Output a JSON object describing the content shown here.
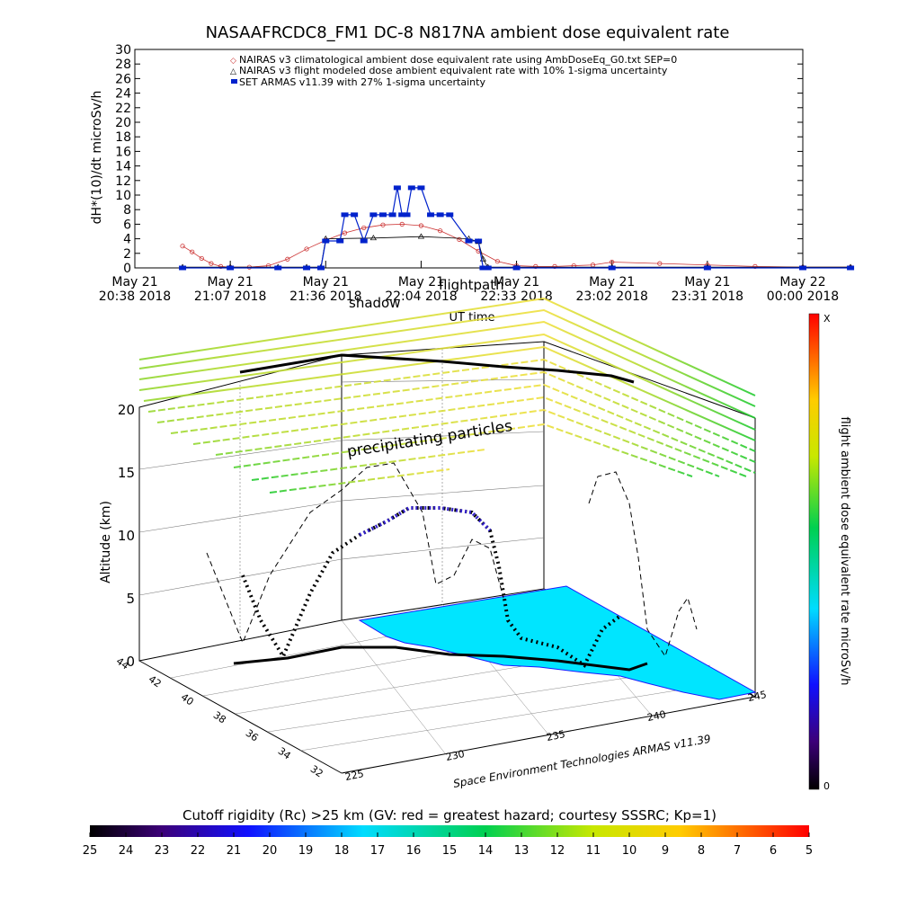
{
  "title": "NASAAFRCDC8_FM1 DC-8    N817NA ambient dose equivalent rate",
  "credit": "Space Environment Technologies ARMAS v11.39",
  "colors": {
    "climatological": "#cc3333",
    "modeled": "#000000",
    "armas": "#0022cc",
    "land": "#00e5ff"
  },
  "chart_data": [
    {
      "type": "scatter",
      "ylabel": "dH*(10)/dt microSv/h",
      "xlabel": "UT time",
      "ylim": [
        0,
        30
      ],
      "yticks": [
        "0",
        "2",
        "4",
        "6",
        "8",
        "10",
        "12",
        "14",
        "16",
        "18",
        "20",
        "22",
        "24",
        "26",
        "28",
        "30"
      ],
      "xticks": [
        {
          "l1": "May 21",
          "l2": "20:38 2018"
        },
        {
          "l1": "May 21",
          "l2": "21:07 2018"
        },
        {
          "l1": "May 21",
          "l2": "21:36 2018"
        },
        {
          "l1": "May 21",
          "l2": "22:04 2018"
        },
        {
          "l1": "May 21",
          "l2": "22:33 2018"
        },
        {
          "l1": "May 21",
          "l2": "23:02 2018"
        },
        {
          "l1": "May 21",
          "l2": "23:31 2018"
        },
        {
          "l1": "May 22",
          "l2": "00:00 2018"
        }
      ],
      "legend": [
        "NAIRAS v3 climatological ambient dose equivalent rate using AmbDoseEq_G0.txt SEP=0",
        "NAIRAS v3 flight modeled dose ambient equivalent rate with 10% 1-sigma uncertainty",
        "SET ARMAS v11.39 with 27% 1-sigma uncertainty"
      ],
      "overlay_labels": [
        "shadow",
        "flightpath"
      ],
      "series": [
        {
          "name": "NAIRAS v3 climatological ambient dose equivalent rate using AmbDoseEq_G0.txt SEP=0",
          "x": [
            0.5,
            0.6,
            0.7,
            0.8,
            0.9,
            1.0,
            1.2,
            1.4,
            1.6,
            1.8,
            2.0,
            2.2,
            2.4,
            2.6,
            2.8,
            3.0,
            3.2,
            3.4,
            3.6,
            3.8,
            4.0,
            4.2,
            4.4,
            4.6,
            4.8,
            5.0,
            5.5,
            6.0,
            6.5,
            7.0,
            7.5
          ],
          "y": [
            3.0,
            2.2,
            1.3,
            0.6,
            0.2,
            0.1,
            0.1,
            0.3,
            1.2,
            2.6,
            3.8,
            4.8,
            5.5,
            5.9,
            6.0,
            5.8,
            5.1,
            3.9,
            2.3,
            0.9,
            0.3,
            0.2,
            0.2,
            0.3,
            0.4,
            0.8,
            0.6,
            0.4,
            0.2,
            0.1,
            0.1
          ]
        },
        {
          "name": "NAIRAS v3 flight modeled dose ambient equivalent rate with 10% 1-sigma uncertainty",
          "x": [
            0.5,
            1.0,
            1.5,
            1.8,
            1.95,
            2.0,
            2.5,
            3.0,
            3.5,
            3.6,
            3.65,
            3.7,
            4.0,
            5.0,
            6.0,
            7.0,
            7.5
          ],
          "y": [
            0.1,
            0.1,
            0.1,
            0.1,
            0.1,
            4.0,
            4.1,
            4.3,
            4.0,
            3.6,
            1.2,
            0.1,
            0.1,
            0.1,
            0.1,
            0.1,
            0.1
          ]
        },
        {
          "name": "SET ARMAS v11.39 with 27% 1-sigma uncertainty",
          "x": [
            0.5,
            1.0,
            1.5,
            1.8,
            1.95,
            2.0,
            2.15,
            2.2,
            2.3,
            2.4,
            2.5,
            2.6,
            2.7,
            2.75,
            2.8,
            2.85,
            2.9,
            3.0,
            3.1,
            3.2,
            3.3,
            3.5,
            3.6,
            3.65,
            3.7,
            4.0,
            5.0,
            6.0,
            7.0,
            7.5
          ],
          "y": [
            0,
            0,
            0,
            0,
            0,
            3.7,
            3.7,
            7.3,
            7.3,
            3.7,
            7.3,
            7.3,
            7.3,
            11.0,
            7.3,
            7.3,
            11.0,
            11.0,
            7.3,
            7.3,
            7.3,
            3.7,
            3.7,
            0,
            0,
            0,
            0,
            0,
            0,
            0
          ]
        }
      ]
    },
    {
      "type": "line",
      "ylabel": "Altitude (km)",
      "zticks": [
        "0",
        "5",
        "10",
        "15",
        "20"
      ],
      "lat_ticks": [
        "44",
        "42",
        "40",
        "38",
        "36",
        "34",
        "32"
      ],
      "lon_ticks": [
        "225",
        "230",
        "235",
        "240",
        "245"
      ],
      "annotation": "precipitating particles",
      "colorbar_label": "flight ambient dose equivalent rate microSv/h",
      "colorbar_ticks": [
        "X",
        "0"
      ]
    },
    {
      "type": "heatmap",
      "title": "Cutoff rigidity (Rc) >25 km (GV: red = greatest hazard; courtesy SSSRC; Kp=1)",
      "ticks": [
        "25",
        "24",
        "23",
        "22",
        "21",
        "20",
        "19",
        "18",
        "17",
        "16",
        "15",
        "14",
        "13",
        "12",
        "11",
        "10",
        "9",
        "8",
        "7",
        "6",
        "5"
      ]
    }
  ]
}
